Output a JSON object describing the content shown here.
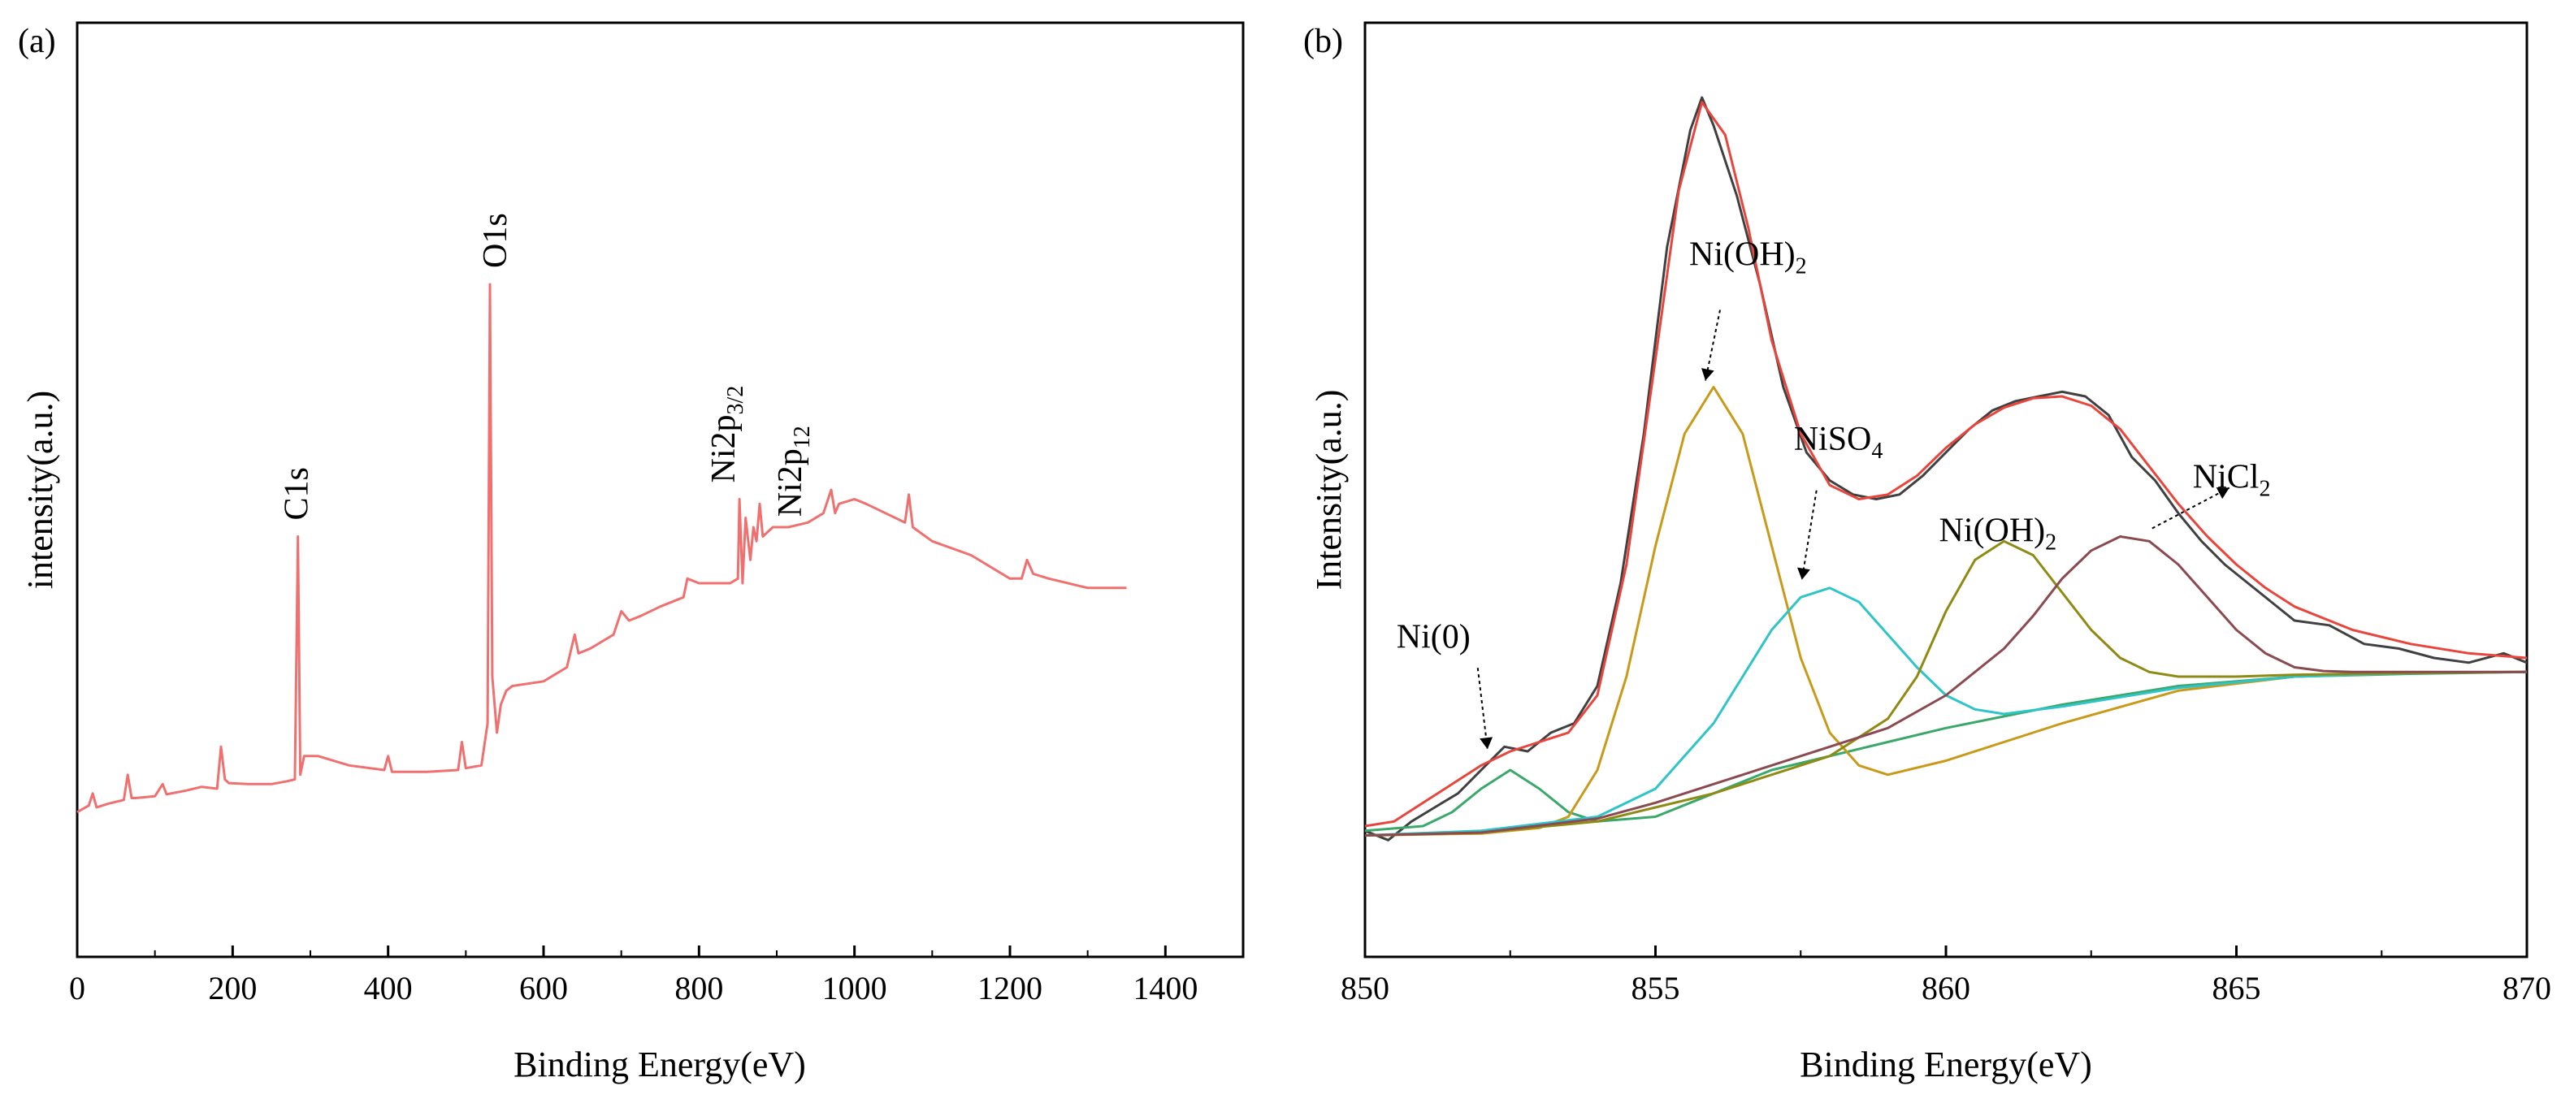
{
  "figure": {
    "panel_a_label": "(a)",
    "panel_b_label": "(b)"
  },
  "chart_data": [
    {
      "panel": "(a)",
      "type": "line",
      "xlabel": "Binding Energy(eV)",
      "ylabel": "intensity(a.u.)",
      "xlim": [
        0,
        1500
      ],
      "ylim": [
        0,
        100
      ],
      "xticks": [
        "0",
        "200",
        "400",
        "600",
        "800",
        "1000",
        "1200",
        "1400"
      ],
      "series": [
        {
          "color": "#f07070",
          "x": [
            0,
            15,
            20,
            25,
            40,
            60,
            65,
            70,
            75,
            100,
            110,
            115,
            140,
            160,
            180,
            185,
            190,
            195,
            220,
            250,
            270,
            280,
            284,
            287,
            292,
            310,
            350,
            395,
            400,
            405,
            450,
            490,
            495,
            500,
            520,
            528,
            531,
            534,
            540,
            545,
            552,
            560,
            600,
            630,
            640,
            645,
            660,
            690,
            700,
            710,
            725,
            750,
            780,
            785,
            800,
            840,
            850,
            852,
            856,
            860,
            866,
            870,
            874,
            878,
            882,
            895,
            915,
            940,
            960,
            970,
            975,
            980,
            1000,
            1015,
            1040,
            1065,
            1070,
            1075,
            1100,
            1150,
            1200,
            1215,
            1222,
            1230,
            1250,
            1300,
            1350
          ],
          "y": [
            15.5,
            16.2,
            17.5,
            16.0,
            16.4,
            16.8,
            19.5,
            17.0,
            17.0,
            17.2,
            18.5,
            17.4,
            17.8,
            18.2,
            18.0,
            22.5,
            19.0,
            18.6,
            18.5,
            18.5,
            18.8,
            19.0,
            45.0,
            19.5,
            21.5,
            21.5,
            20.5,
            20.0,
            21.5,
            19.8,
            19.8,
            20.0,
            23.0,
            20.2,
            20.5,
            25.0,
            72.0,
            30.0,
            24.0,
            27.0,
            28.5,
            29.0,
            29.5,
            31.0,
            34.5,
            32.5,
            33.0,
            34.5,
            37.0,
            36.0,
            36.5,
            37.5,
            38.5,
            40.5,
            40.0,
            40.0,
            40.5,
            49.0,
            40.0,
            47.0,
            42.5,
            46.0,
            44.5,
            48.5,
            45.0,
            46.0,
            46.0,
            46.5,
            47.5,
            50.0,
            47.5,
            48.5,
            49.0,
            48.5,
            47.5,
            46.5,
            49.5,
            46.0,
            44.5,
            43.0,
            40.5,
            40.5,
            42.5,
            41.0,
            40.5,
            39.5,
            39.5
          ]
        }
      ],
      "annotations": [
        {
          "text": "C1s",
          "x": 284,
          "y": 45.0
        },
        {
          "text": "O1s",
          "x": 531,
          "y": 72.0
        },
        {
          "text": "Ni2p",
          "sub": "3/2",
          "x": 856,
          "y": 49.0
        },
        {
          "text": "Ni2p",
          "sub": "12",
          "x": 874,
          "y": 44.5
        }
      ]
    },
    {
      "panel": "(b)",
      "type": "line",
      "xlabel": "Binding Energy(eV)",
      "ylabel": "Intensity(a.u.)",
      "xlim": [
        850,
        870
      ],
      "ylim": [
        0,
        100
      ],
      "xticks": [
        "850",
        "855",
        "860",
        "865",
        "870"
      ],
      "series": [
        {
          "color": "#404040",
          "x": [
            850,
            850.4,
            850.8,
            851.2,
            851.6,
            852,
            852.4,
            852.8,
            853.2,
            853.6,
            854,
            854.4,
            854.8,
            855.2,
            855.6,
            855.8,
            856,
            856.4,
            856.8,
            857.2,
            857.6,
            858,
            858.4,
            858.8,
            859.2,
            859.6,
            860,
            860.4,
            860.8,
            861.2,
            861.6,
            862,
            862.4,
            862.8,
            863.2,
            863.6,
            864,
            864.4,
            864.8,
            865.2,
            865.6,
            866,
            866.6,
            867.2,
            867.8,
            868.4,
            869,
            869.6,
            870
          ],
          "y": [
            13.5,
            12.5,
            14.5,
            16.0,
            17.5,
            20.0,
            22.5,
            22.0,
            24.0,
            25.0,
            29.0,
            40.0,
            56.0,
            76.0,
            88.5,
            92.0,
            89.0,
            81.5,
            72.0,
            61.0,
            54.0,
            51.0,
            49.5,
            49.0,
            49.5,
            51.5,
            54.0,
            56.5,
            58.5,
            59.5,
            60.0,
            60.5,
            60.0,
            58.0,
            53.5,
            51.0,
            47.5,
            44.5,
            42.0,
            40.0,
            38.0,
            36.0,
            35.5,
            33.5,
            33.0,
            32.0,
            31.5,
            32.5,
            31.5
          ]
        },
        {
          "color": "#e8453c",
          "x": [
            850,
            850.5,
            851,
            851.5,
            852,
            852.5,
            853,
            853.5,
            854,
            854.5,
            855,
            855.4,
            855.8,
            856.2,
            856.6,
            857,
            857.5,
            858,
            858.5,
            859,
            859.5,
            860,
            860.5,
            861,
            861.5,
            862,
            862.5,
            863,
            863.5,
            864,
            864.5,
            865,
            865.5,
            866,
            867,
            868,
            869,
            870
          ],
          "y": [
            14.0,
            14.5,
            16.5,
            18.5,
            20.5,
            22.0,
            23.0,
            24.0,
            28.0,
            42.0,
            64.0,
            82.0,
            91.5,
            88.0,
            78.0,
            66.0,
            56.0,
            50.5,
            49.0,
            49.5,
            51.5,
            54.5,
            57.0,
            58.8,
            59.8,
            60.0,
            59.0,
            56.5,
            52.5,
            48.5,
            45.0,
            42.0,
            39.5,
            37.5,
            35.0,
            33.5,
            32.5,
            32.0
          ]
        },
        {
          "color": "#3aa86b",
          "x": [
            850,
            851,
            851.5,
            852,
            852.5,
            853,
            853.5,
            854,
            855,
            856,
            857,
            858,
            859,
            860,
            862,
            864,
            866,
            868,
            870
          ],
          "y": [
            13.5,
            14.0,
            15.5,
            18.0,
            20.0,
            18.0,
            15.5,
            14.5,
            15.0,
            17.5,
            20.0,
            21.5,
            23.0,
            24.5,
            27.0,
            29.0,
            30.0,
            30.3,
            30.5
          ]
        },
        {
          "color": "#c99a1a",
          "x": [
            850,
            852,
            853,
            853.5,
            854,
            854.5,
            855,
            855.5,
            856,
            856.5,
            857,
            857.5,
            858,
            858.5,
            859,
            860,
            862,
            864,
            866,
            868,
            870
          ],
          "y": [
            13.0,
            13.2,
            13.8,
            15.0,
            20.0,
            30.0,
            44.0,
            56.0,
            61.0,
            56.0,
            44.0,
            32.0,
            24.0,
            20.5,
            19.5,
            21.0,
            25.0,
            28.5,
            30.0,
            30.4,
            30.5
          ]
        },
        {
          "color": "#2ec4c8",
          "x": [
            850,
            852,
            854,
            855,
            856,
            856.5,
            857,
            857.5,
            858,
            858.5,
            859,
            859.5,
            860,
            860.5,
            861,
            862,
            864,
            866,
            868,
            870
          ],
          "y": [
            13.0,
            13.5,
            15.0,
            18.0,
            25.0,
            30.0,
            35.0,
            38.5,
            39.5,
            38.0,
            34.5,
            31.0,
            28.0,
            26.5,
            26.0,
            26.8,
            28.8,
            30.0,
            30.4,
            30.5
          ]
        },
        {
          "color": "#8f8a14",
          "x": [
            850,
            852,
            854,
            855,
            856,
            857,
            858,
            859,
            859.5,
            860,
            860.5,
            861,
            861.5,
            862,
            862.5,
            863,
            863.5,
            864,
            865,
            866,
            868,
            870
          ],
          "y": [
            13.0,
            13.3,
            14.5,
            16.0,
            17.5,
            19.5,
            21.5,
            25.5,
            30.0,
            37.0,
            42.5,
            44.5,
            43.0,
            39.0,
            35.0,
            32.0,
            30.5,
            30.0,
            30.0,
            30.2,
            30.4,
            30.5
          ]
        },
        {
          "color": "#8a4a52",
          "x": [
            850,
            852,
            854,
            855,
            856,
            857,
            858,
            859,
            860,
            861,
            861.5,
            862,
            862.5,
            863,
            863.5,
            864,
            864.5,
            865,
            865.5,
            866,
            866.5,
            867,
            868,
            870
          ],
          "y": [
            13.0,
            13.3,
            14.8,
            16.5,
            18.5,
            20.5,
            22.5,
            24.5,
            28.0,
            33.0,
            36.5,
            40.5,
            43.5,
            45.0,
            44.5,
            42.0,
            38.5,
            35.0,
            32.5,
            31.0,
            30.6,
            30.5,
            30.5,
            30.5
          ]
        }
      ],
      "annotations": [
        {
          "text": "Ni(0)",
          "x": 852.5,
          "y": 20.5
        },
        {
          "text": "Ni(OH)",
          "sub": "2",
          "x": 856,
          "y": 61.0
        },
        {
          "text": "NiSO",
          "sub": "4",
          "x": 857.8,
          "y": 39.5
        },
        {
          "text": "Ni(OH)",
          "sub": "2",
          "x": 861,
          "y": 44.5
        },
        {
          "text": "NiCl",
          "sub": "2",
          "x": 863.2,
          "y": 45.0
        }
      ]
    }
  ]
}
